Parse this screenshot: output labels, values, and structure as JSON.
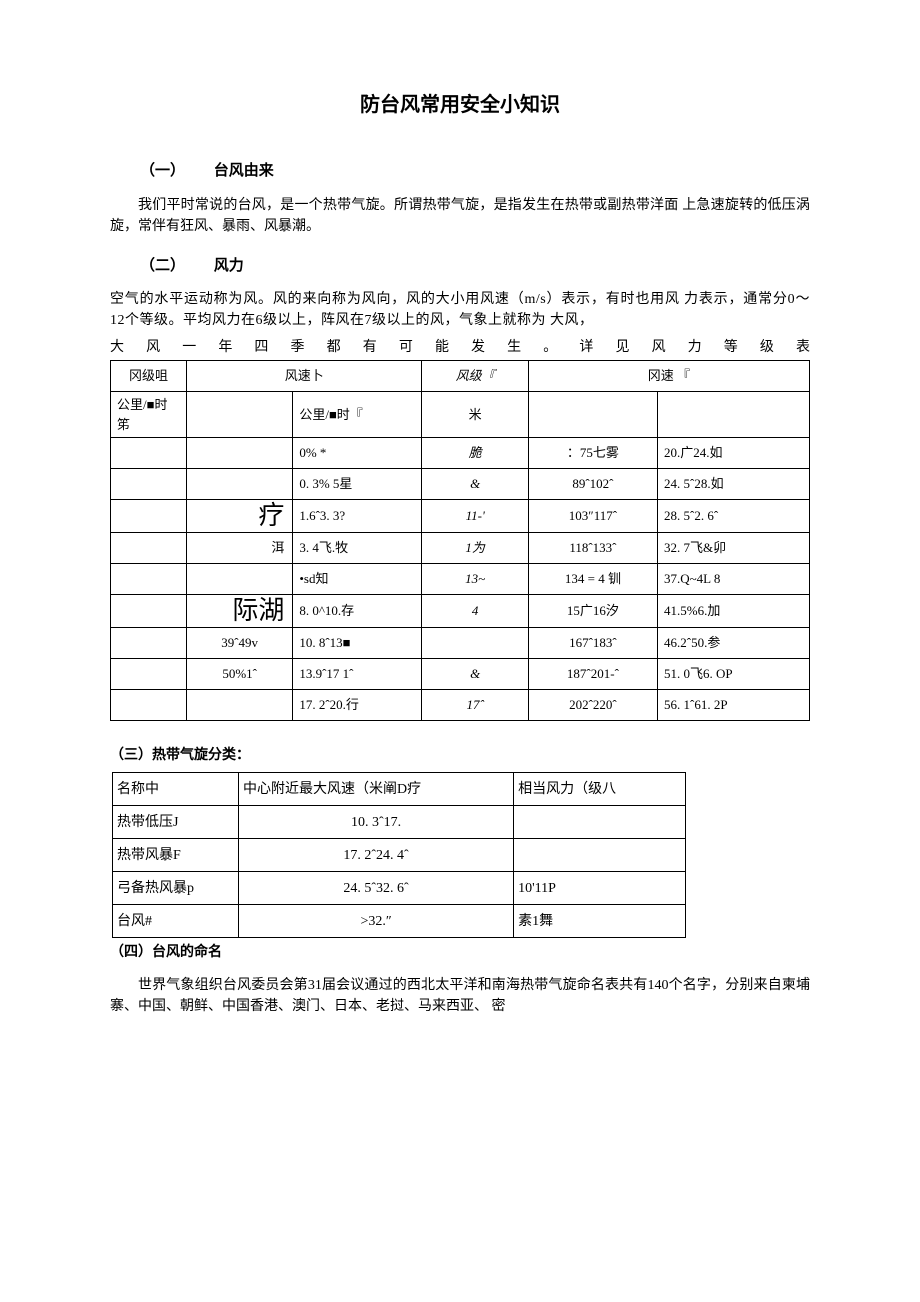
{
  "title": "防台风常用安全小知识",
  "section1": {
    "num": "（一）",
    "label": "台风由来",
    "body": "我们平时常说的台风，是一个热带气旋。所谓热带气旋，是指发生在热带或副热带洋面 上急速旋转的低压涡旋，常伴有狂风、暴雨、风暴潮。"
  },
  "section2": {
    "num": "（二）",
    "label": "风力",
    "body_l1": "空气的水平运动称为风。风的来向称为风向，风的大小用风速（m/s）表示，有时也用风 力表示，通常分0〜12个等级。平均风力在6级以上，阵风在7级以上的风，气象上就称为 大风，",
    "body_l2": "大 风 一 年 四 季 都 有 可 能 发 生 。 详 见 风 力 等 级 表"
  },
  "wind_table": {
    "header": [
      "冈级咀",
      "风速卜",
      "风级『",
      "冈速 『"
    ],
    "subheader": [
      "公里/■时笫",
      "",
      "公里/■时『",
      "米",
      "",
      ""
    ],
    "rows": [
      [
        "",
        "",
        "0% *",
        "脆",
        "：75七雾",
        "20.广24.如"
      ],
      [
        "",
        "",
        "0. 3% 5星",
        "&",
        "89ˆ102ˆ",
        "24. 5ˆ28.如"
      ],
      [
        "",
        "疗",
        "1.6ˆ3. 3?",
        "11-'",
        "103″117ˆ",
        "28. 5ˆ2. 6ˆ"
      ],
      [
        "",
        "洱",
        "3. 4飞.牧",
        "1为",
        "118ˆ133ˆ",
        "32. 7飞&卯"
      ],
      [
        "",
        "",
        "•sd知",
        "13~",
        "134 = 4 钏",
        "37.Q~4L 8"
      ],
      [
        "",
        "际湖",
        "8. 0^10.存",
        "4",
        "15广16汐",
        "41.5%6.加"
      ],
      [
        "",
        "39ˆ49v",
        "10. 8ˆ13■",
        "",
        "167ˆ183ˆ",
        "46.2ˆ50.参"
      ],
      [
        "",
        "50%1ˆ",
        "13.9ˆ17 1ˆ",
        "&",
        "187ˆ201-ˆ",
        "51. 0飞6. OP"
      ],
      [
        "",
        "",
        "17. 2ˆ20.行",
        "17ˆ",
        "202ˆ220ˆ",
        "56. 1ˆ61. 2P"
      ]
    ],
    "big_rows": [
      2,
      5
    ],
    "right_rows": [
      3
    ]
  },
  "section3": {
    "label": "（三）热带气旋分类："
  },
  "cyclone_table": {
    "header": [
      "名称中",
      "中心附近最大风速（米阐D疗",
      "相当风力（级八"
    ],
    "rows": [
      [
        "热带低压J",
        "10. 3ˆ17.",
        ""
      ],
      [
        "热带风暴F",
        "17. 2ˆ24. 4ˆ",
        ""
      ],
      [
        "弓备热风暴p",
        "24. 5ˆ32. 6ˆ",
        "10'11P"
      ],
      [
        "台风#",
        ">32.″",
        "素1舞"
      ]
    ]
  },
  "section4": {
    "label": "（四）台风的命名",
    "body": "世界气象组织台风委员会第31届会议通过的西北太平洋和南海热带气旋命名表共有140个名字，分别来自柬埔寨、中国、朝鲜、中国香港、澳门、日本、老挝、马来西亚、 密"
  }
}
